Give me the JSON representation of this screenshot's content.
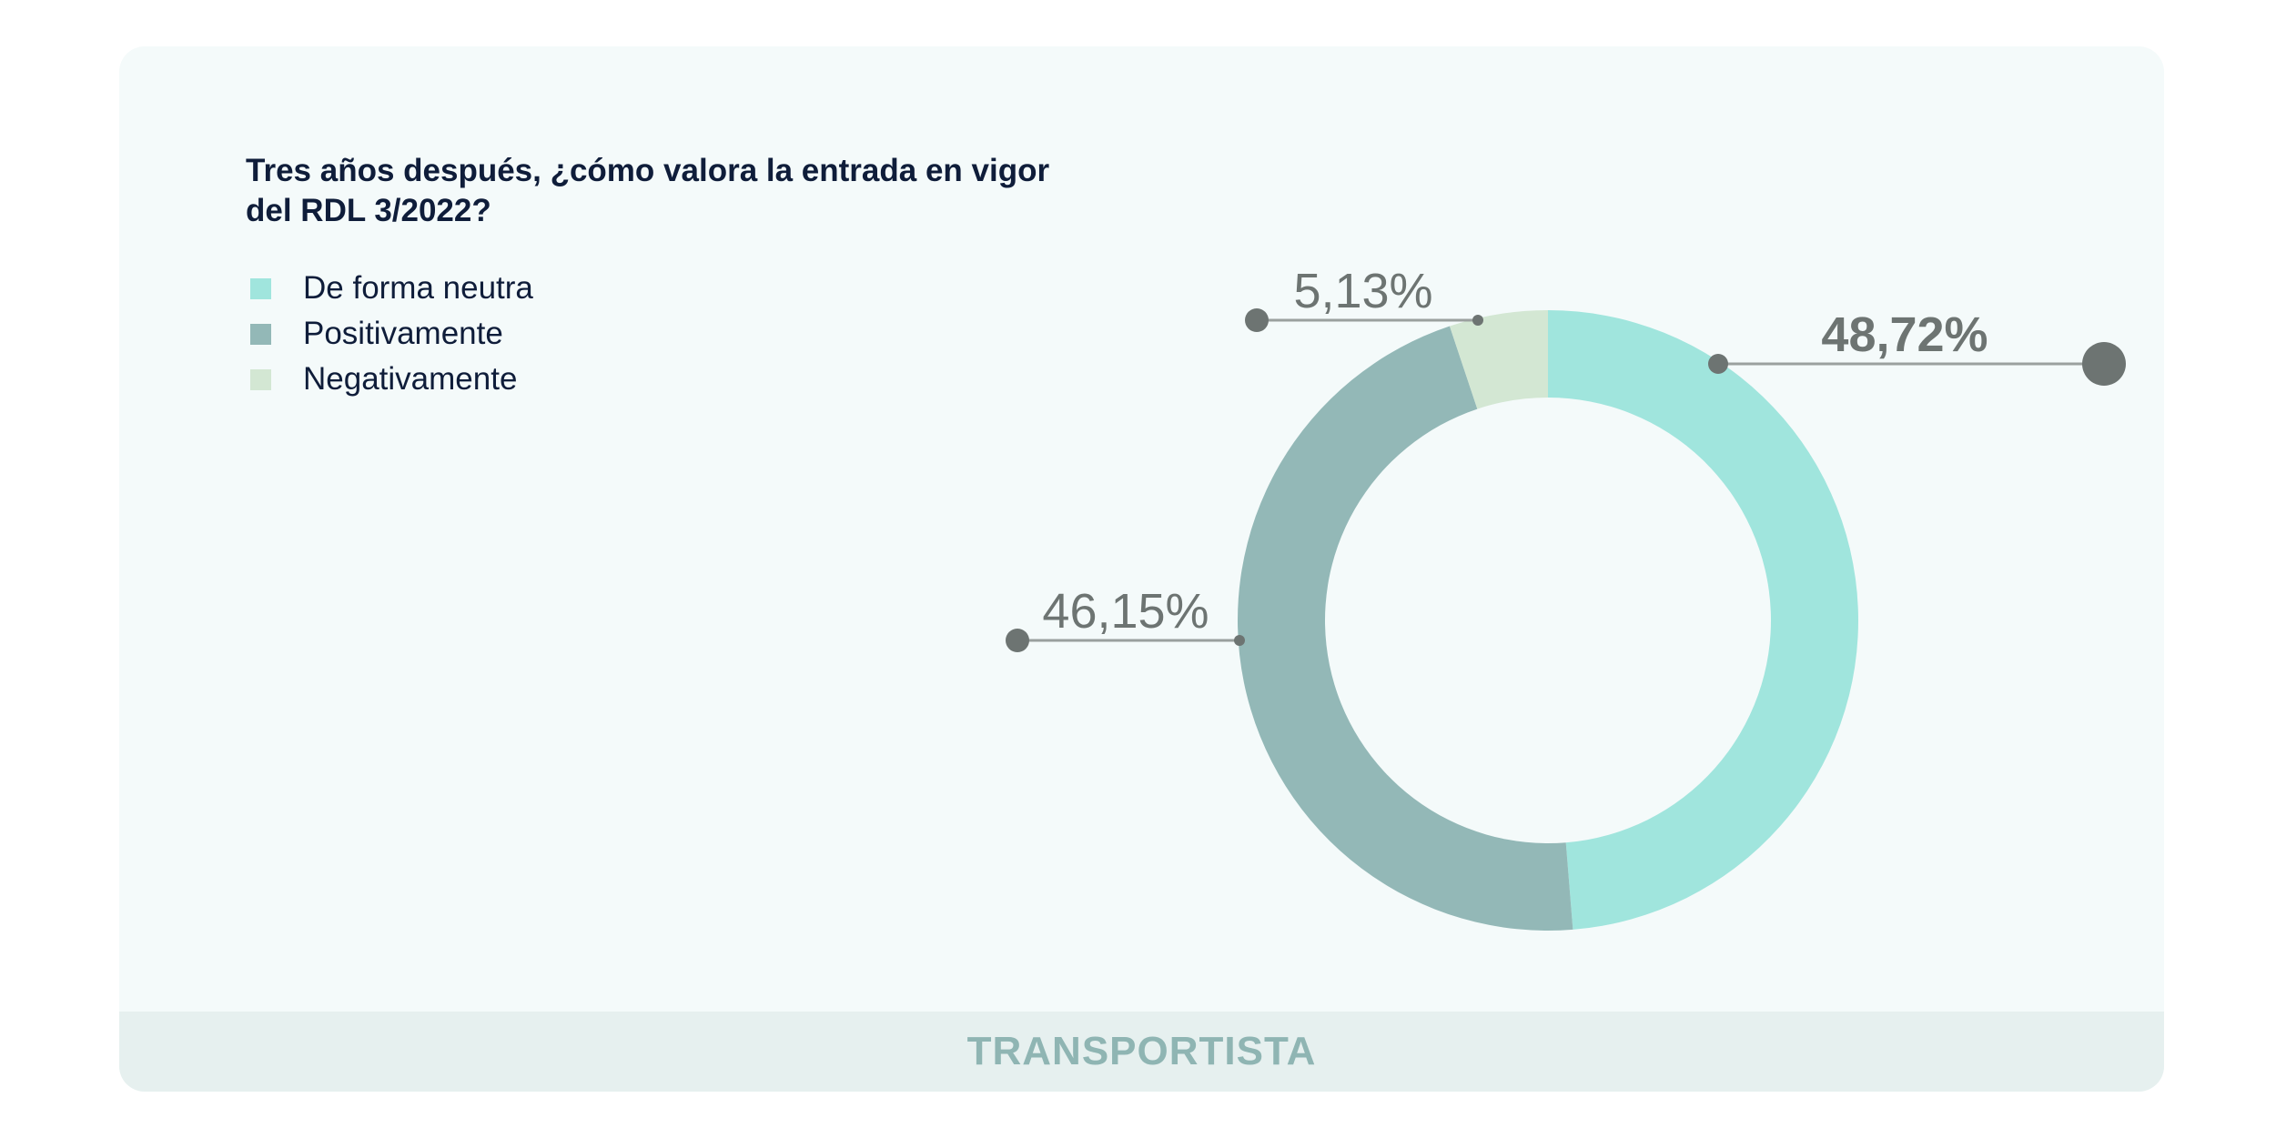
{
  "chart_data": {
    "type": "pie",
    "variant": "donut",
    "title": "Tres años después, ¿cómo valora la entrada en vigor del RDL 3/2022?",
    "categories": [
      "De forma neutra",
      "Positivamente",
      "Negativamente"
    ],
    "values": [
      48.72,
      46.15,
      5.13
    ],
    "data_labels": [
      "48,72%",
      "46,15%",
      "5,13%"
    ],
    "colors": [
      "#a0e5dd",
      "#93b8b7",
      "#d3e7d3"
    ],
    "legend_position": "top-left"
  },
  "footer": {
    "label": "TRANSPORTISTA"
  },
  "colors": {
    "card_bg": "#f4fafa",
    "footer_bg": "#e6f0ef",
    "title": "#0f1d3a",
    "label": "#6d7472"
  }
}
